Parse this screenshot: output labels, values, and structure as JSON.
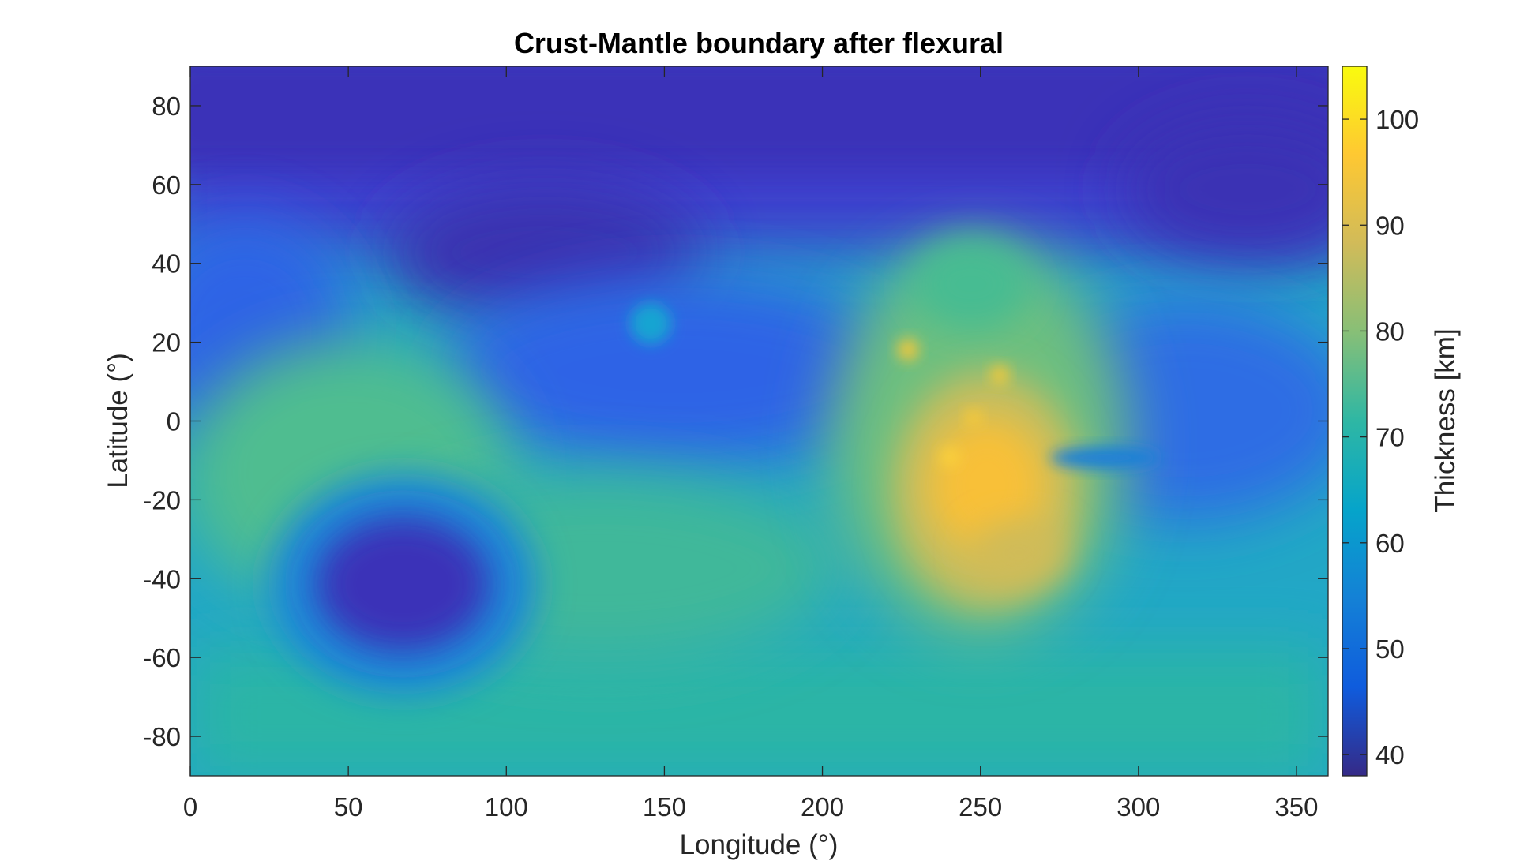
{
  "chart_data": {
    "type": "heatmap",
    "title": "Crust-Mantle boundary after flexural",
    "xlabel": "Longitude (°)",
    "ylabel": "Latitude (°)",
    "xlim": [
      0,
      360
    ],
    "ylim": [
      -90,
      90
    ],
    "x_ticks": [
      0,
      50,
      100,
      150,
      200,
      250,
      300,
      350
    ],
    "y_ticks": [
      80,
      60,
      40,
      20,
      0,
      -20,
      -40,
      -60,
      -80
    ],
    "x_tick_labels": [
      "0",
      "50",
      "100",
      "150",
      "200",
      "250",
      "300",
      "350"
    ],
    "y_tick_labels": [
      "80",
      "60",
      "40",
      "20",
      "0",
      "-20",
      "-40",
      "-60",
      "-80"
    ],
    "colormap": "parula",
    "colorbar": {
      "label": "Thickness [km]",
      "range": [
        38,
        105
      ],
      "ticks": [
        100,
        90,
        80,
        70,
        60,
        50,
        40
      ],
      "tick_labels": [
        "100",
        "90",
        "80",
        "70",
        "60",
        "50",
        "40"
      ],
      "colors": [
        "#352a87",
        "#0f5cdd",
        "#1481d6",
        "#06a4ca",
        "#2eb7a4",
        "#87bf77",
        "#d1bb59",
        "#fec832",
        "#f9fb0e"
      ]
    },
    "grid": false,
    "features": [
      {
        "lon": 68,
        "lat": -42,
        "value": 40
      },
      {
        "lon": 112,
        "lat": 40,
        "value": 43
      },
      {
        "lon": 250,
        "lat": -10,
        "value": 96
      },
      {
        "lon": 227,
        "lat": 18,
        "value": 97
      },
      {
        "lon": 256,
        "lat": 12,
        "value": 97
      },
      {
        "lon": 248,
        "lat": 1,
        "value": 97
      },
      {
        "lon": 240,
        "lat": -9,
        "value": 98
      },
      {
        "lon": 147,
        "lat": 25,
        "value": 65
      },
      {
        "lon": 330,
        "lat": 65,
        "value": 42
      }
    ]
  }
}
